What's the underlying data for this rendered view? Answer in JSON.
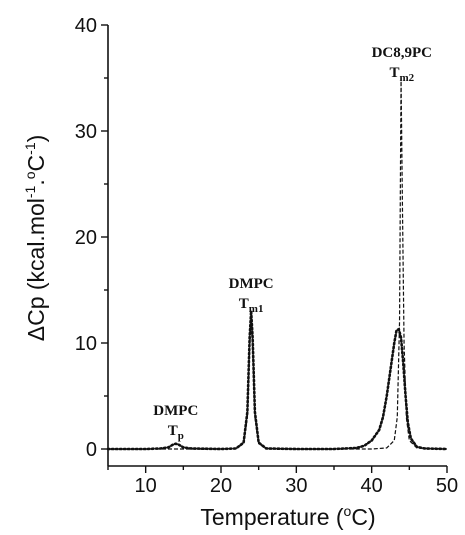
{
  "chart_data": {
    "type": "line",
    "title": "",
    "xlabel": {
      "pre": "Temperature (",
      "sup": "o",
      "post": "C)"
    },
    "ylabel": {
      "delta": "ΔCp (kcal.mol",
      "sup1": "-1",
      "mid": ".",
      "sup2": "o",
      "c": "C",
      "sup3": "-1",
      "end": ")"
    },
    "xlim": [
      5,
      50
    ],
    "ylim": [
      -1,
      40
    ],
    "xticks": [
      10,
      20,
      30,
      40,
      50
    ],
    "yticks": [
      0,
      10,
      20,
      30,
      40
    ],
    "grid": false,
    "series": [
      {
        "style": "dotted",
        "x": [
          5,
          10,
          12,
          13,
          13.6,
          14,
          14.4,
          15,
          16,
          20,
          22,
          23,
          23.5,
          23.8,
          24.0,
          24.2,
          24.5,
          25,
          26,
          30,
          35,
          38,
          39,
          40,
          41,
          41.5,
          42,
          42.5,
          43,
          43.3,
          43.6,
          43.9,
          44.2,
          44.5,
          44.8,
          45.2,
          46,
          47,
          50
        ],
        "y": [
          0,
          0,
          0.05,
          0.15,
          0.4,
          0.5,
          0.4,
          0.15,
          0.05,
          0,
          0.05,
          0.6,
          3.5,
          10.5,
          13.0,
          10.5,
          3.5,
          0.6,
          0.05,
          0,
          0,
          0.1,
          0.3,
          0.8,
          1.8,
          3.0,
          5.0,
          7.5,
          10.0,
          11.2,
          11.3,
          10.5,
          8.0,
          5.0,
          2.5,
          1.0,
          0.2,
          0.05,
          0
        ]
      },
      {
        "style": "dashed",
        "x": [
          5,
          20,
          22,
          23,
          23.5,
          23.8,
          24.0,
          24.2,
          24.5,
          25,
          26,
          30,
          40,
          42,
          43,
          43.4,
          43.7,
          43.9,
          44.1,
          44.3,
          44.6,
          45,
          46,
          50
        ],
        "y": [
          0,
          0,
          0.05,
          0.5,
          3.0,
          9.5,
          12.0,
          9.5,
          3.0,
          0.5,
          0.05,
          0,
          0,
          0.1,
          0.8,
          3.0,
          12.0,
          35.0,
          22.0,
          10.0,
          3.0,
          0.8,
          0.1,
          0
        ]
      }
    ],
    "annotations": [
      {
        "id": "tp",
        "line1": "DMPC",
        "sym": "T",
        "sub": "p",
        "x": 14,
        "y": 3.2
      },
      {
        "id": "tm1",
        "line1": "DMPC",
        "sym": "T",
        "sub": "m1",
        "x": 24,
        "y": 15.2
      },
      {
        "id": "tm2",
        "line1": "DC8,9PC",
        "sym": "T",
        "sub": "m2",
        "x": 44,
        "y": 37.0
      }
    ]
  }
}
